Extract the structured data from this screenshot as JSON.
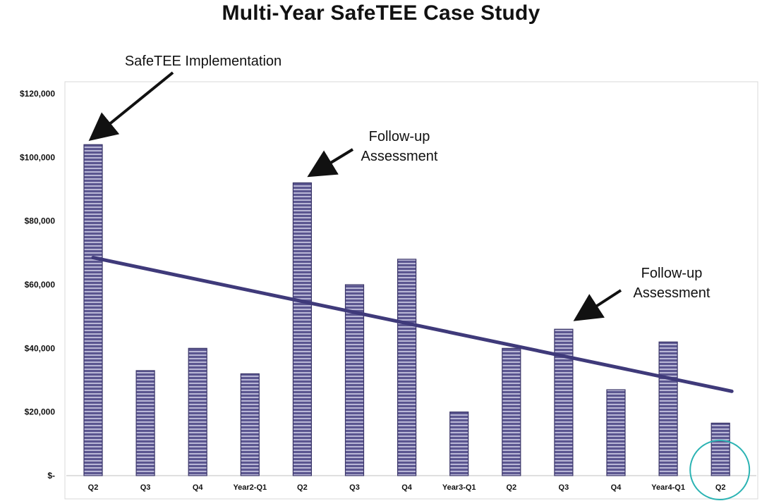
{
  "title": "Multi-Year SafeTEE Case Study",
  "colors": {
    "bar_fill": "#5b5690",
    "bar_stripe": "#b9b7d6",
    "bar_stroke": "#3a3568",
    "trend": "#3f3a7a",
    "highlight_circle": "#2bb3b3"
  },
  "chart_data": {
    "type": "bar",
    "title": "Multi-Year SafeTEE Case Study",
    "xlabel": "",
    "ylabel": "",
    "ylim": [
      0,
      120000
    ],
    "yticks": [
      0,
      20000,
      40000,
      60000,
      80000,
      100000,
      120000
    ],
    "ytick_labels": [
      "$-",
      "$20,000",
      "$40,000",
      "$60,000",
      "$80,000",
      "$100,000",
      "$120,000"
    ],
    "categories": [
      "Q2",
      "Q3",
      "Q4",
      "Year2-Q1",
      "Q2",
      "Q3",
      "Q4",
      "Year3-Q1",
      "Q2",
      "Q3",
      "Q4",
      "Year4-Q1",
      "Q2"
    ],
    "values": [
      104000,
      33000,
      40000,
      32000,
      92000,
      60000,
      68000,
      20000,
      40000,
      46000,
      27000,
      42000,
      16500
    ],
    "trendline": {
      "start": 68500,
      "end": 26500
    },
    "annotations": [
      {
        "lines": [
          "SafeTEE Implementation"
        ],
        "target_index": 0
      },
      {
        "lines": [
          "Follow-up",
          "Assessment"
        ],
        "target_index": 4
      },
      {
        "lines": [
          "Follow-up",
          "Assessment"
        ],
        "target_index": 9
      }
    ],
    "highlight_index": 12
  }
}
